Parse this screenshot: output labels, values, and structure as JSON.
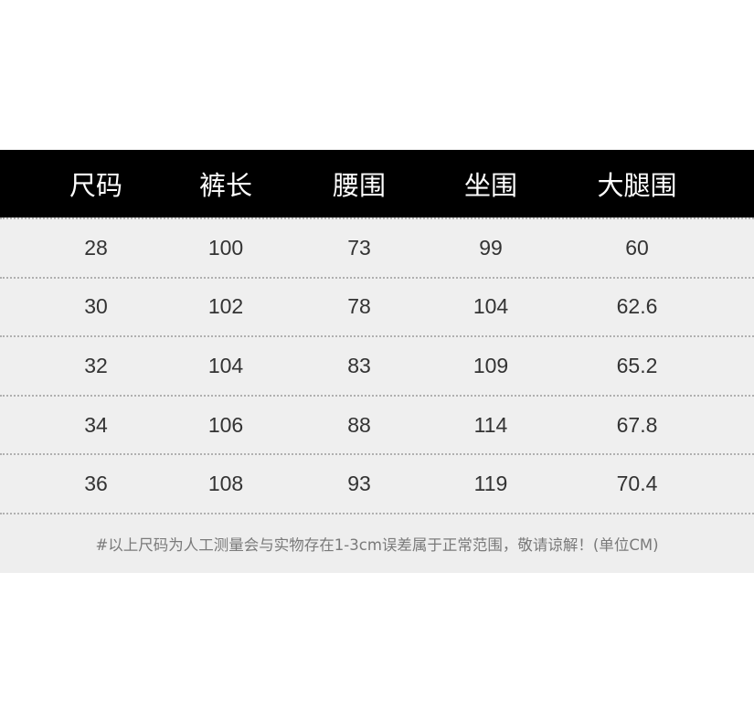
{
  "headers": [
    "尺码",
    "裤长",
    "腰围",
    "坐围",
    "大腿围"
  ],
  "rows": [
    [
      "28",
      "100",
      "73",
      "99",
      "60"
    ],
    [
      "30",
      "102",
      "78",
      "104",
      "62.6"
    ],
    [
      "32",
      "104",
      "83",
      "109",
      "65.2"
    ],
    [
      "34",
      "106",
      "88",
      "114",
      "67.8"
    ],
    [
      "36",
      "108",
      "93",
      "119",
      "70.4"
    ]
  ],
  "note": "#以上尺码为人工测量会与实物存在1-3cm误差属于正常范围，敬请谅解！(单位CM)"
}
